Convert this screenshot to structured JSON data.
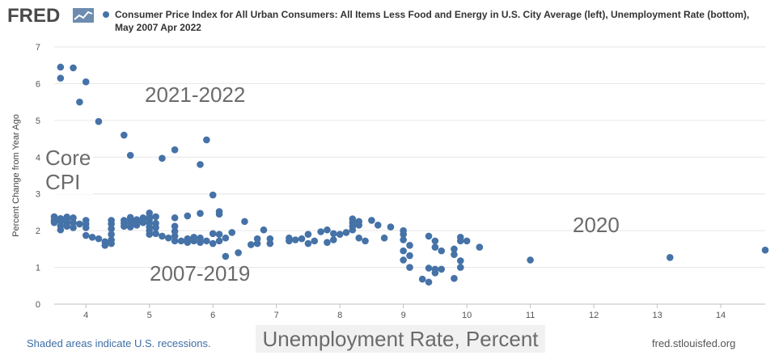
{
  "header": {
    "logo_text": "FRED",
    "logo_icon": "fred-graph-icon",
    "legend_text": "Consumer Price Index for All Urban Consumers: All Items Less Food and Energy in U.S. City Average (left), Unemployment Rate (bottom), May 2007 Apr 2022"
  },
  "footer": {
    "recession_note": "Shaded areas indicate U.S. recessions.",
    "source": "fred.stlouisfed.org"
  },
  "annotations": {
    "period_2021": "2021-2022",
    "period_2007": "2007-2019",
    "period_2020": "2020",
    "cpi_line1": "Core",
    "cpi_line2": "CPI"
  },
  "colors": {
    "series": "#4572a7",
    "grid": "#e6e6e6",
    "axis_text": "#555555"
  },
  "chart_data": {
    "type": "scatter",
    "title": "",
    "xlabel": "Unemployment Rate, Percent",
    "ylabel": "Percent Change from Year Ago",
    "xlim": [
      3.5,
      14.7
    ],
    "ylim": [
      0,
      7
    ],
    "xticks": [
      4,
      5,
      6,
      7,
      8,
      9,
      10,
      11,
      12,
      13,
      14
    ],
    "yticks": [
      0,
      1,
      2,
      3,
      4,
      5,
      6,
      7
    ],
    "grid": "horizontal",
    "series": [
      {
        "name": "",
        "points": [
          [
            3.6,
            6.45
          ],
          [
            3.8,
            6.43
          ],
          [
            3.6,
            6.15
          ],
          [
            4.0,
            6.05
          ],
          [
            3.9,
            5.5
          ],
          [
            4.2,
            4.97
          ],
          [
            4.6,
            4.6
          ],
          [
            5.9,
            4.47
          ],
          [
            5.4,
            4.2
          ],
          [
            4.7,
            4.05
          ],
          [
            5.2,
            3.97
          ],
          [
            5.8,
            3.8
          ],
          [
            6.0,
            2.97
          ],
          [
            6.1,
            2.52
          ],
          [
            6.1,
            2.45
          ],
          [
            5.8,
            2.47
          ],
          [
            5.6,
            2.4
          ],
          [
            5.4,
            2.35
          ],
          [
            4.9,
            2.32
          ],
          [
            5.0,
            2.48
          ],
          [
            3.5,
            2.38
          ],
          [
            3.5,
            2.28
          ],
          [
            3.5,
            2.22
          ],
          [
            3.6,
            2.33
          ],
          [
            3.6,
            2.25
          ],
          [
            3.6,
            2.13
          ],
          [
            3.6,
            2.02
          ],
          [
            3.7,
            2.37
          ],
          [
            3.7,
            2.3
          ],
          [
            3.7,
            2.2
          ],
          [
            3.7,
            2.12
          ],
          [
            3.8,
            2.35
          ],
          [
            3.8,
            2.22
          ],
          [
            3.8,
            2.08
          ],
          [
            3.9,
            2.18
          ],
          [
            4.0,
            2.28
          ],
          [
            4.0,
            2.18
          ],
          [
            4.0,
            2.08
          ],
          [
            4.0,
            1.87
          ],
          [
            4.1,
            1.82
          ],
          [
            4.2,
            1.78
          ],
          [
            4.3,
            1.7
          ],
          [
            4.3,
            1.6
          ],
          [
            4.4,
            1.65
          ],
          [
            4.4,
            1.75
          ],
          [
            4.4,
            1.9
          ],
          [
            4.4,
            2.05
          ],
          [
            4.4,
            2.18
          ],
          [
            4.4,
            2.28
          ],
          [
            4.6,
            2.12
          ],
          [
            4.6,
            2.2
          ],
          [
            4.6,
            2.28
          ],
          [
            4.7,
            2.1
          ],
          [
            4.7,
            2.2
          ],
          [
            4.7,
            2.3
          ],
          [
            4.7,
            2.36
          ],
          [
            4.8,
            2.15
          ],
          [
            4.8,
            2.25
          ],
          [
            4.8,
            2.3
          ],
          [
            4.9,
            2.22
          ],
          [
            4.9,
            2.35
          ],
          [
            5.0,
            1.9
          ],
          [
            5.0,
            2.0
          ],
          [
            5.0,
            2.1
          ],
          [
            5.0,
            2.2
          ],
          [
            5.0,
            2.3
          ],
          [
            5.0,
            2.37
          ],
          [
            5.1,
            1.92
          ],
          [
            5.1,
            2.08
          ],
          [
            5.1,
            2.2
          ],
          [
            5.1,
            2.38
          ],
          [
            5.2,
            1.85
          ],
          [
            5.3,
            1.8
          ],
          [
            5.4,
            1.72
          ],
          [
            5.4,
            1.85
          ],
          [
            5.4,
            1.98
          ],
          [
            5.4,
            2.12
          ],
          [
            5.5,
            1.72
          ],
          [
            5.6,
            1.68
          ],
          [
            5.6,
            1.78
          ],
          [
            5.7,
            1.72
          ],
          [
            5.7,
            1.82
          ],
          [
            5.8,
            1.68
          ],
          [
            5.8,
            1.8
          ],
          [
            5.9,
            1.72
          ],
          [
            6.0,
            1.65
          ],
          [
            6.0,
            1.92
          ],
          [
            6.1,
            1.72
          ],
          [
            6.1,
            1.9
          ],
          [
            6.2,
            1.3
          ],
          [
            6.2,
            1.8
          ],
          [
            6.3,
            1.95
          ],
          [
            6.4,
            1.4
          ],
          [
            6.5,
            2.25
          ],
          [
            6.6,
            1.62
          ],
          [
            6.7,
            1.65
          ],
          [
            6.7,
            1.78
          ],
          [
            6.8,
            2.02
          ],
          [
            6.9,
            1.65
          ],
          [
            6.9,
            1.78
          ],
          [
            7.2,
            1.72
          ],
          [
            7.2,
            1.8
          ],
          [
            7.3,
            1.75
          ],
          [
            7.4,
            1.78
          ],
          [
            7.5,
            1.65
          ],
          [
            7.5,
            1.9
          ],
          [
            7.6,
            1.72
          ],
          [
            7.7,
            1.97
          ],
          [
            7.8,
            1.68
          ],
          [
            7.8,
            2.02
          ],
          [
            7.9,
            1.75
          ],
          [
            7.9,
            1.92
          ],
          [
            8.0,
            1.9
          ],
          [
            8.1,
            1.95
          ],
          [
            8.2,
            2.02
          ],
          [
            8.2,
            2.12
          ],
          [
            8.2,
            2.22
          ],
          [
            8.2,
            2.32
          ],
          [
            8.3,
            1.8
          ],
          [
            8.3,
            2.15
          ],
          [
            8.3,
            2.25
          ],
          [
            8.4,
            1.72
          ],
          [
            8.5,
            2.28
          ],
          [
            8.6,
            2.15
          ],
          [
            8.7,
            1.8
          ],
          [
            8.8,
            2.1
          ],
          [
            9.0,
            1.2
          ],
          [
            9.0,
            1.45
          ],
          [
            9.0,
            1.75
          ],
          [
            9.0,
            1.9
          ],
          [
            9.0,
            2.0
          ],
          [
            9.1,
            1.0
          ],
          [
            9.1,
            1.32
          ],
          [
            9.1,
            1.6
          ],
          [
            9.3,
            0.68
          ],
          [
            9.4,
            0.6
          ],
          [
            9.4,
            0.98
          ],
          [
            9.4,
            1.85
          ],
          [
            9.5,
            0.85
          ],
          [
            9.5,
            0.95
          ],
          [
            9.5,
            1.55
          ],
          [
            9.5,
            1.72
          ],
          [
            9.6,
            0.95
          ],
          [
            9.6,
            1.45
          ],
          [
            9.8,
            0.7
          ],
          [
            9.8,
            1.35
          ],
          [
            9.8,
            1.5
          ],
          [
            9.9,
            1.0
          ],
          [
            9.9,
            1.18
          ],
          [
            9.9,
            1.72
          ],
          [
            9.9,
            1.82
          ],
          [
            10.0,
            1.72
          ],
          [
            10.2,
            1.55
          ],
          [
            11.0,
            1.2
          ],
          [
            13.2,
            1.27
          ],
          [
            14.7,
            1.47
          ]
        ]
      }
    ]
  }
}
